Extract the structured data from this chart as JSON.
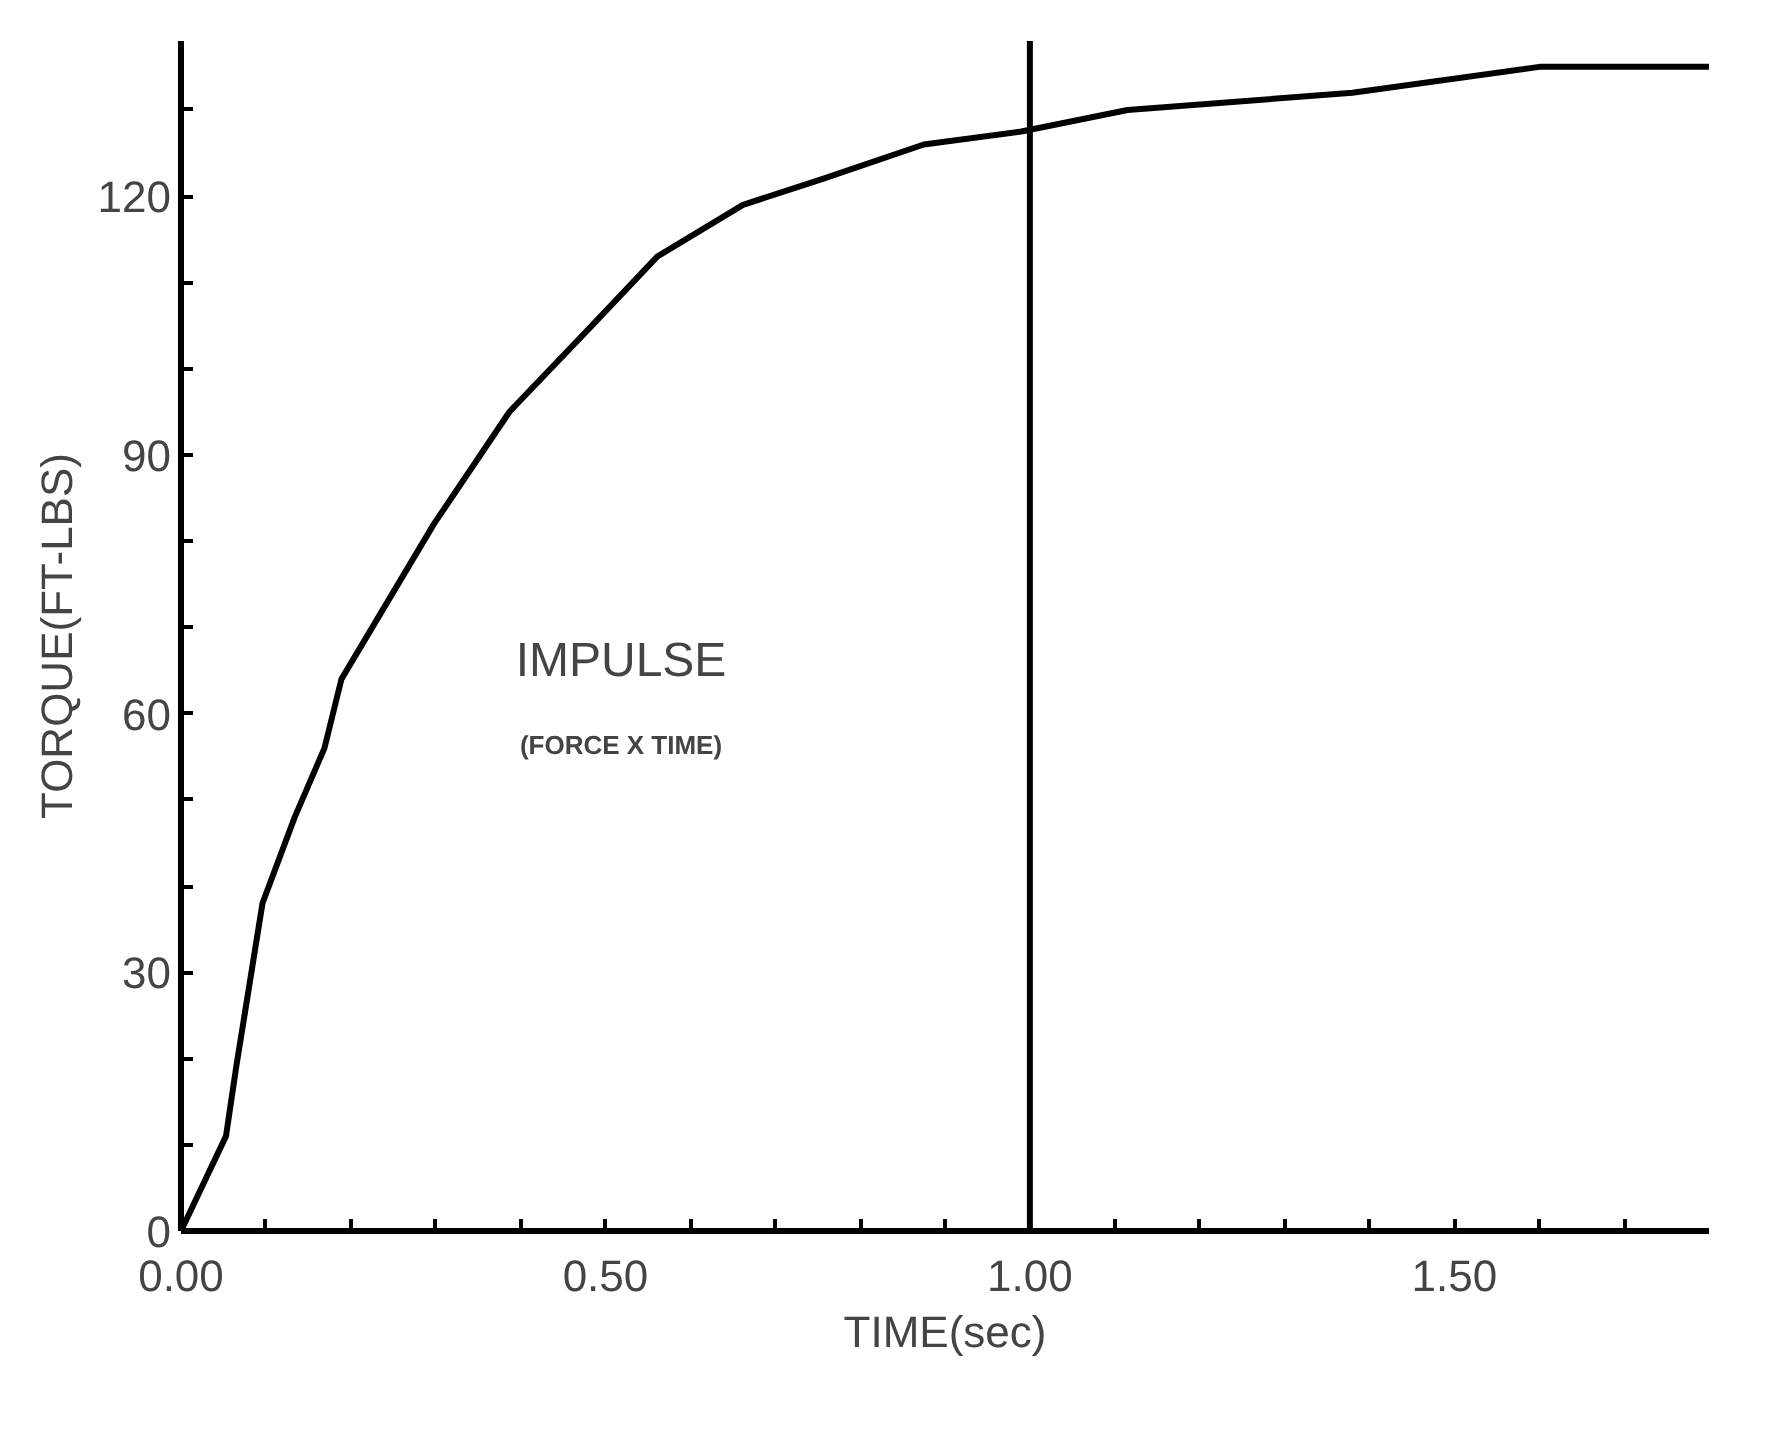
{
  "chart_data": {
    "type": "line",
    "xlabel": "TIME(sec)",
    "ylabel": "TORQUE(FT-LBS)",
    "xlim": [
      0,
      1.8
    ],
    "ylim": [
      0,
      138
    ],
    "xticks": [
      {
        "value": 0,
        "label": "0.00"
      },
      {
        "value": 0.1,
        "label": null
      },
      {
        "value": 0.2,
        "label": null
      },
      {
        "value": 0.3,
        "label": null
      },
      {
        "value": 0.4,
        "label": null
      },
      {
        "value": 0.5,
        "label": "0.50"
      },
      {
        "value": 0.6,
        "label": null
      },
      {
        "value": 0.7,
        "label": null
      },
      {
        "value": 0.8,
        "label": null
      },
      {
        "value": 0.9,
        "label": null
      },
      {
        "value": 1.0,
        "label": "1.00"
      },
      {
        "value": 1.1,
        "label": null
      },
      {
        "value": 1.2,
        "label": null
      },
      {
        "value": 1.3,
        "label": null
      },
      {
        "value": 1.4,
        "label": null
      },
      {
        "value": 1.5,
        "label": "1.50"
      },
      {
        "value": 1.6,
        "label": null
      },
      {
        "value": 1.7,
        "label": null
      }
    ],
    "yticks": [
      0,
      {
        "value": 10,
        "label": null
      },
      {
        "value": 20,
        "label": null
      },
      30,
      {
        "value": 40,
        "label": null
      },
      {
        "value": 50,
        "label": null
      },
      60,
      {
        "value": 70,
        "label": null
      },
      {
        "value": 80,
        "label": null
      },
      90,
      {
        "value": 100,
        "label": null
      },
      {
        "value": 110,
        "label": null
      },
      120,
      {
        "value": 130,
        "label": null
      }
    ],
    "series": [
      {
        "color": "#000000",
        "x": [
          0,
          0.053,
          0.065,
          0.096,
          0.134,
          0.169,
          0.189,
          0.298,
          0.387,
          0.484,
          0.561,
          0.662,
          0.756,
          0.875,
          0.99,
          1.115,
          1.38,
          1.6,
          1.8
        ],
        "values": [
          0,
          11,
          19,
          38,
          48,
          56,
          64,
          82,
          95,
          105,
          113,
          119,
          122,
          126,
          127.5,
          130,
          132,
          135,
          135
        ]
      }
    ],
    "ref_lines": [
      {
        "axis": "x",
        "value": 1.0,
        "color": "#000000",
        "line_style": "solid"
      }
    ],
    "annotations": [
      "IMPULSE",
      "(FORCE X TIME)"
    ],
    "grid": false,
    "marker": "none",
    "line_style": "solid"
  }
}
